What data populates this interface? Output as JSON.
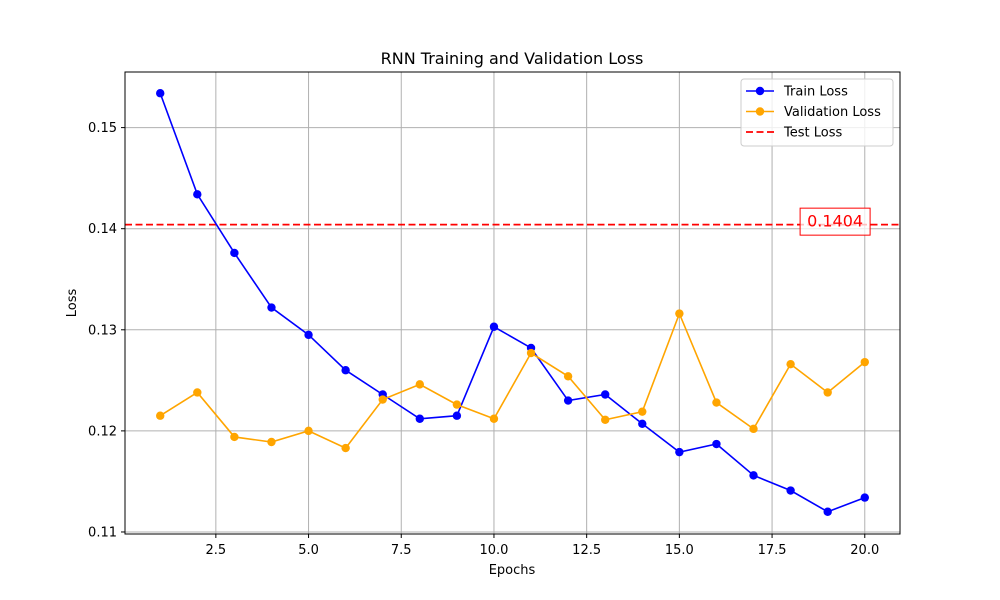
{
  "chart_data": {
    "type": "line",
    "title": "RNN Training and Validation Loss",
    "xlabel": "Epochs",
    "ylabel": "Loss",
    "xlim": [
      0.05,
      20.95
    ],
    "ylim": [
      0.1098,
      0.1555
    ],
    "xticks": [
      2.5,
      5.0,
      7.5,
      10.0,
      12.5,
      15.0,
      17.5,
      20.0
    ],
    "xtick_labels": [
      "2.5",
      "5.0",
      "7.5",
      "10.0",
      "12.5",
      "15.0",
      "17.5",
      "20.0"
    ],
    "yticks": [
      0.11,
      0.12,
      0.13,
      0.14,
      0.15
    ],
    "ytick_labels": [
      "0.11",
      "0.12",
      "0.13",
      "0.14",
      "0.15"
    ],
    "grid": true,
    "legend_position": "top-right",
    "x": [
      1,
      2,
      3,
      4,
      5,
      6,
      7,
      8,
      9,
      10,
      11,
      12,
      13,
      14,
      15,
      16,
      17,
      18,
      19,
      20
    ],
    "series": [
      {
        "name": "Train Loss",
        "color": "#0000ff",
        "line_style": "solid",
        "marker": "circle",
        "values": [
          0.1534,
          0.1434,
          0.1376,
          0.1322,
          0.1295,
          0.126,
          0.1236,
          0.1212,
          0.1215,
          0.1303,
          0.1282,
          0.123,
          0.1236,
          0.1207,
          0.1179,
          0.1187,
          0.1156,
          0.1141,
          0.112,
          0.1134
        ]
      },
      {
        "name": "Validation Loss",
        "color": "#ffa500",
        "line_style": "solid",
        "marker": "circle",
        "values": [
          0.1215,
          0.1238,
          0.1194,
          0.1189,
          0.12,
          0.1183,
          0.1231,
          0.1246,
          0.1226,
          0.1212,
          0.1277,
          0.1254,
          0.1211,
          0.1219,
          0.1316,
          0.1228,
          0.1202,
          0.1266,
          0.1238,
          0.1268
        ]
      }
    ],
    "reference_lines": [
      {
        "name": "Test Loss",
        "color": "#ff0000",
        "line_style": "dashed",
        "y": 0.1404
      }
    ],
    "annotations": [
      {
        "text": "0.1404",
        "x": 19.2,
        "y": 0.1404,
        "color": "#ff0000"
      }
    ]
  }
}
